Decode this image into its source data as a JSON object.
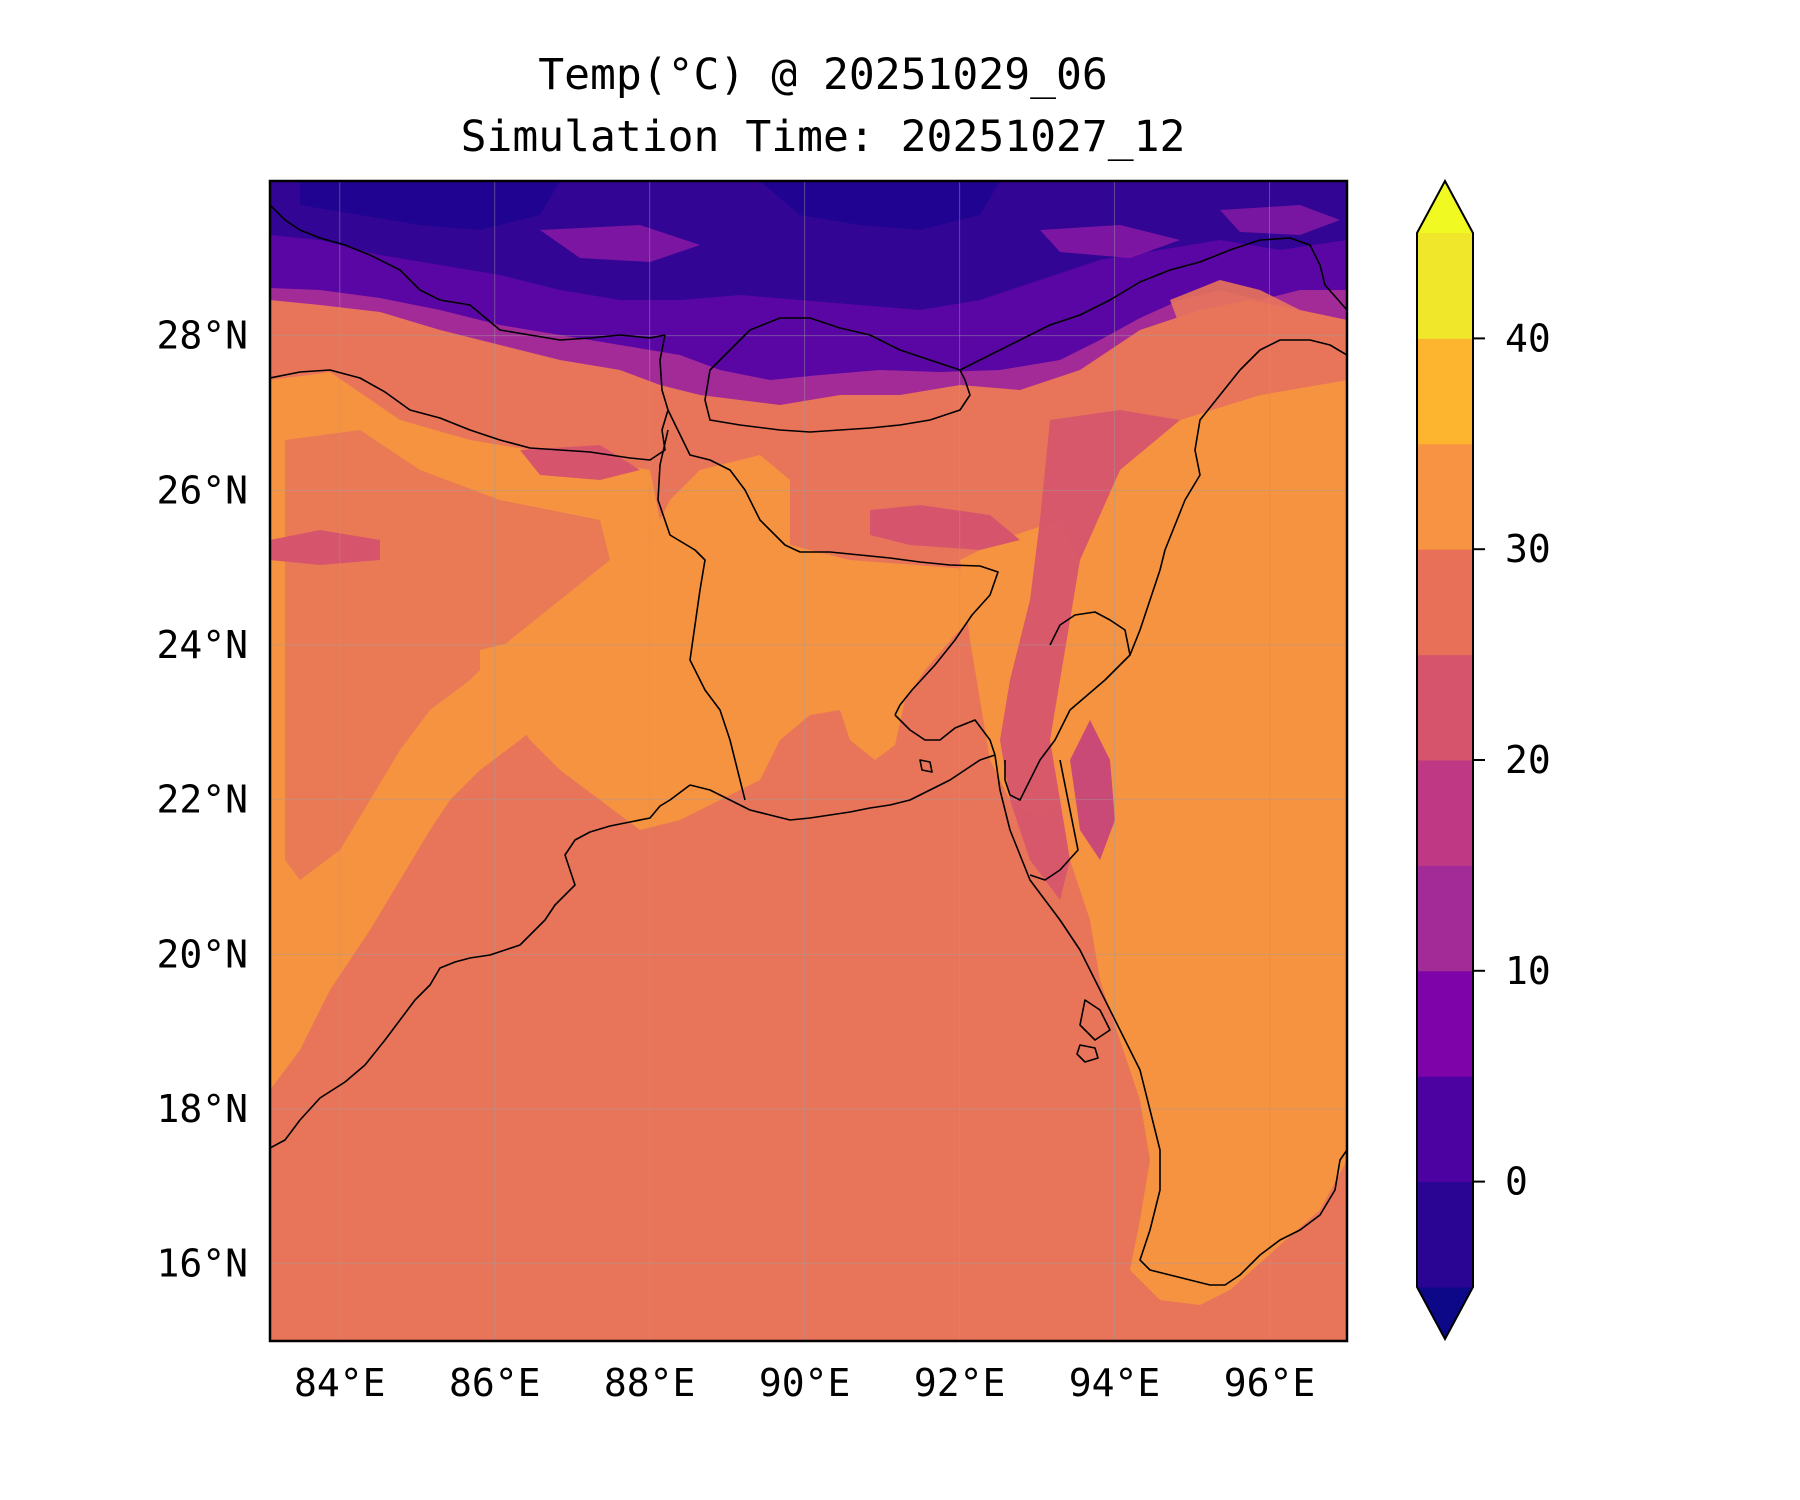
{
  "title_line1": "Temp(°C) @ 20251029_06",
  "title_line2": "Simulation Time: 20251027_12",
  "map": {
    "type": "filled-contour-map",
    "variable": "Temp(°C)",
    "lon_range": [
      83.1,
      97.0
    ],
    "lat_range": [
      15.0,
      30.0
    ],
    "lon_ticks": [
      "84°E",
      "86°E",
      "88°E",
      "90°E",
      "92°E",
      "94°E",
      "96°E"
    ],
    "lat_ticks": [
      "16°N",
      "18°N",
      "20°N",
      "22°N",
      "24°N",
      "26°N",
      "28°N"
    ],
    "grid": true,
    "coastlines": true,
    "borders": true
  },
  "colorbar": {
    "ticks": [
      "0",
      "10",
      "20",
      "30",
      "40"
    ],
    "levels": [
      -5,
      0,
      5,
      10,
      15,
      20,
      25,
      30,
      35,
      40,
      45
    ],
    "extend": "both",
    "colormap": "plasma",
    "colors": [
      "#0d0887",
      "#2a0593",
      "#4c02a1",
      "#7e03a8",
      "#a22b97",
      "#be3883",
      "#d6556d",
      "#e87059",
      "#f79342",
      "#fdb42f",
      "#f0e62a",
      "#f0f921"
    ]
  },
  "dominant_colors": {
    "sea": "#e8755a",
    "land_warm": "#f69340",
    "highland": "#d6556d",
    "mountains_cold": "#5a06a4",
    "outline": "#000000"
  }
}
